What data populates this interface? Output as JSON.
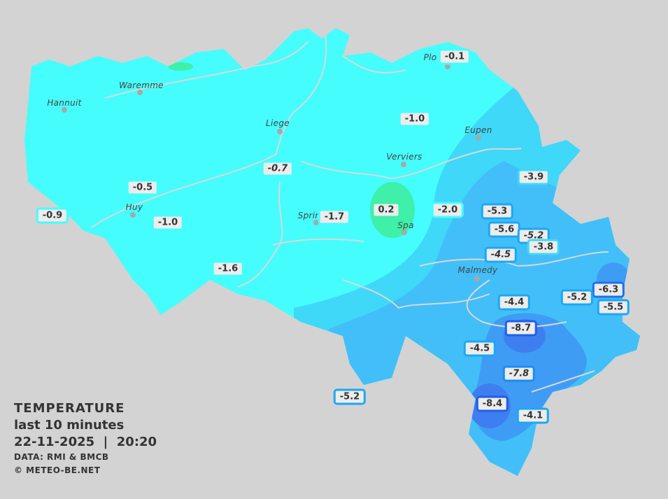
{
  "legend": {
    "title": "TEMPERATURE",
    "period": "last 10 minutes",
    "datetime": "22-11-2025  |  20:20",
    "source": "DATA: RMI & BMCB",
    "copyright": "© METEO-BE.NET"
  },
  "colors": {
    "background": "#d3d3d3",
    "zone_0_to_minus2": "#45fdfd",
    "zone_above_0": "#3ef0a8",
    "zone_minus2_to_minus4": "#3fd8f8",
    "zone_minus4_to_minus6": "#42bff8",
    "zone_minus6_to_minus8": "#3f9cf5",
    "zone_below_minus8": "#3f7ef0"
  },
  "towns": [
    "Plo",
    "Waremme",
    "Hannuit",
    "Liege",
    "Eupen",
    "Verviers",
    "Huy",
    "Sprin",
    "Spa",
    "Malmedy"
  ],
  "stations": [
    {
      "value": "-0.1"
    },
    {
      "value": "-1.0"
    },
    {
      "value": "-0.7",
      "italic": true
    },
    {
      "value": "-0.5"
    },
    {
      "value": "-0.9"
    },
    {
      "value": "-1.0"
    },
    {
      "value": "-1.7"
    },
    {
      "value": "0.2"
    },
    {
      "value": "-2.0"
    },
    {
      "value": "-3.9"
    },
    {
      "value": "-5.3"
    },
    {
      "value": "-5.6"
    },
    {
      "value": "-5.2",
      "italic": true
    },
    {
      "value": "-3.8"
    },
    {
      "value": "-4.5",
      "italic": true
    },
    {
      "value": "-1.6"
    },
    {
      "value": "-6.3"
    },
    {
      "value": "-5.2"
    },
    {
      "value": "-5.5"
    },
    {
      "value": "-4.4"
    },
    {
      "value": "-8.7"
    },
    {
      "value": "-4.5"
    },
    {
      "value": "-7.8",
      "italic": true
    },
    {
      "value": "-5.2"
    },
    {
      "value": "-8.4"
    },
    {
      "value": "-4.1"
    }
  ]
}
